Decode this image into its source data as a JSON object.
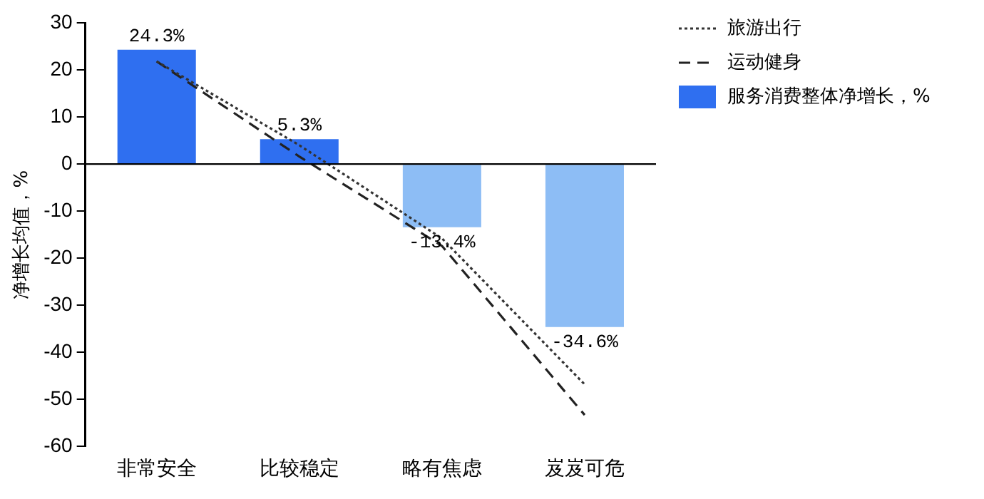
{
  "chart_data": {
    "type": "bar",
    "ylabel": "净增长均值，%",
    "categories": [
      "非常安全",
      "比较稳定",
      "略有焦虑",
      "岌岌可危"
    ],
    "series": [
      {
        "type": "line",
        "name": "旅游出行",
        "color": "#333333",
        "line_style": "dotted",
        "marker": "none",
        "values": [
          21.8,
          4.0,
          -15.8,
          -46.8
        ]
      },
      {
        "type": "line",
        "name": "运动健身",
        "color": "#222222",
        "line_style": "dashed",
        "marker": "none",
        "values": [
          21.8,
          1.6,
          -17.4,
          -53.3
        ]
      },
      {
        "name": "服务消费整体净增长，%",
        "colors": [
          "#2f6ff0",
          "#2f6ff0",
          "#8dbdf5",
          "#8dbdf5"
        ],
        "values": [
          24.3,
          5.3,
          -13.4,
          -34.6
        ],
        "value_labels": [
          "24.3%",
          "5.3%",
          "-13.4%",
          "-34.6%"
        ]
      }
    ],
    "ylim": [
      -60,
      30
    ],
    "yticks": [
      -60,
      -50,
      -40,
      -30,
      -20,
      -10,
      0,
      10,
      20,
      30
    ],
    "grid": false,
    "legend": "top right",
    "ref_lines": [
      {
        "axis": "y",
        "value": 0,
        "color": "#000000"
      }
    ]
  }
}
